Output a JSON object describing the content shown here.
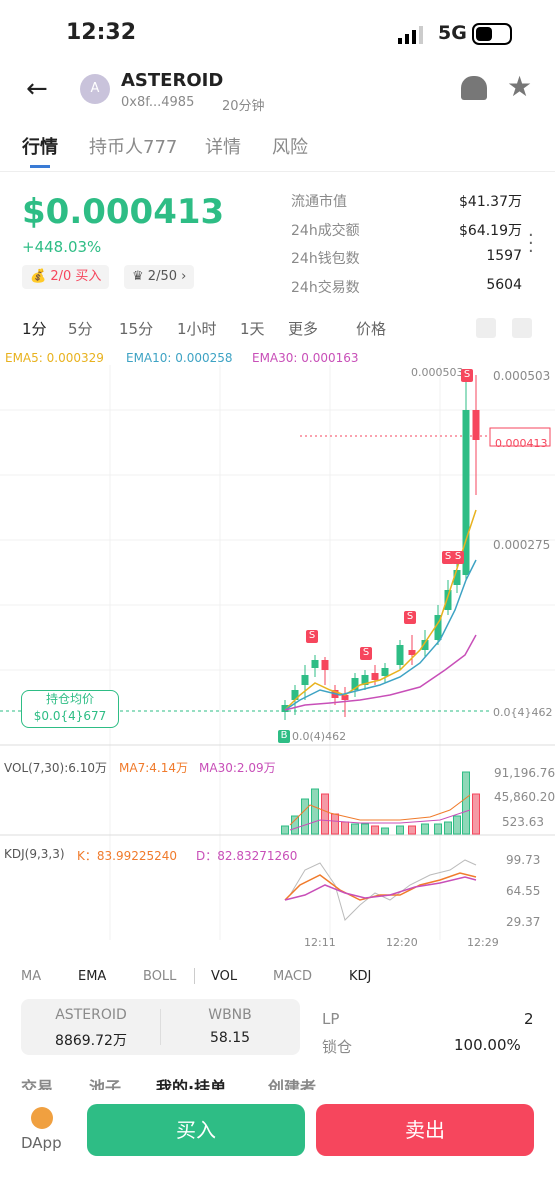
{
  "status_bar": {
    "time": "12:32",
    "network": "5G"
  },
  "header": {
    "avatar": "A",
    "name": "ASTEROID",
    "address": "0x8f...4985",
    "age": "20分钟"
  },
  "tabs": [
    "行情",
    "持币人777",
    "详情",
    "风险"
  ],
  "price": {
    "value": "$0.000413",
    "change": "+448.03%",
    "badge_count": "2/0",
    "badge_action": "买入",
    "badge2": "2/50"
  },
  "stats": [
    {
      "label": "流通市值",
      "value": "$41.37万"
    },
    {
      "label": "24h成交额",
      "value": "$64.19万"
    },
    {
      "label": "24h钱包数",
      "value": "1597"
    },
    {
      "label": "24h交易数",
      "value": "5604"
    }
  ],
  "intervals": [
    "1分",
    "5分",
    "15分",
    "1小时",
    "1天",
    "更多",
    "价格"
  ],
  "ema_legend": [
    "EMA5: 0.000329",
    "EMA10: 0.000258",
    "EMA30: 0.000163"
  ],
  "price_axis": {
    "high": "0.000503",
    "current": "0.000413",
    "mid": "0.000275",
    "low": "0.0{4}462",
    "high_marker": "0.000503",
    "buy_marker": "0.0(4)462",
    "buy_flag": "B",
    "sell_flag": "S"
  },
  "holding": {
    "label": "持仓均价",
    "value": "$0.0{4}677"
  },
  "vol": {
    "legend": [
      "VOL(7,30):6.10万",
      "MA7:4.14万",
      "MA30:2.09万"
    ],
    "axis": [
      "91,196.76",
      "45,860.20",
      "523.63"
    ]
  },
  "kdj": {
    "legend": [
      "KDJ(9,3,3)",
      "K：83.99225240",
      "D：82.83271260"
    ],
    "axis": [
      "99.73",
      "64.55",
      "29.37"
    ]
  },
  "time_axis": [
    "12:11",
    "12:20",
    "12:29"
  ],
  "indicators": [
    "MA",
    "EMA",
    "BOLL",
    "VOL",
    "MACD",
    "KDJ"
  ],
  "pool": {
    "token1": "ASTEROID",
    "amount1": "8869.72万",
    "token2": "WBNB",
    "amount2": "58.15",
    "lp_label": "LP",
    "lp_value": "2",
    "lock_label": "锁仓",
    "lock_value": "100.00%"
  },
  "sub_tabs": [
    "交易",
    "池子",
    "我的·挂单",
    "创建者"
  ],
  "bottom": {
    "dapp": "DApp",
    "buy": "买入",
    "sell": "卖出"
  }
}
